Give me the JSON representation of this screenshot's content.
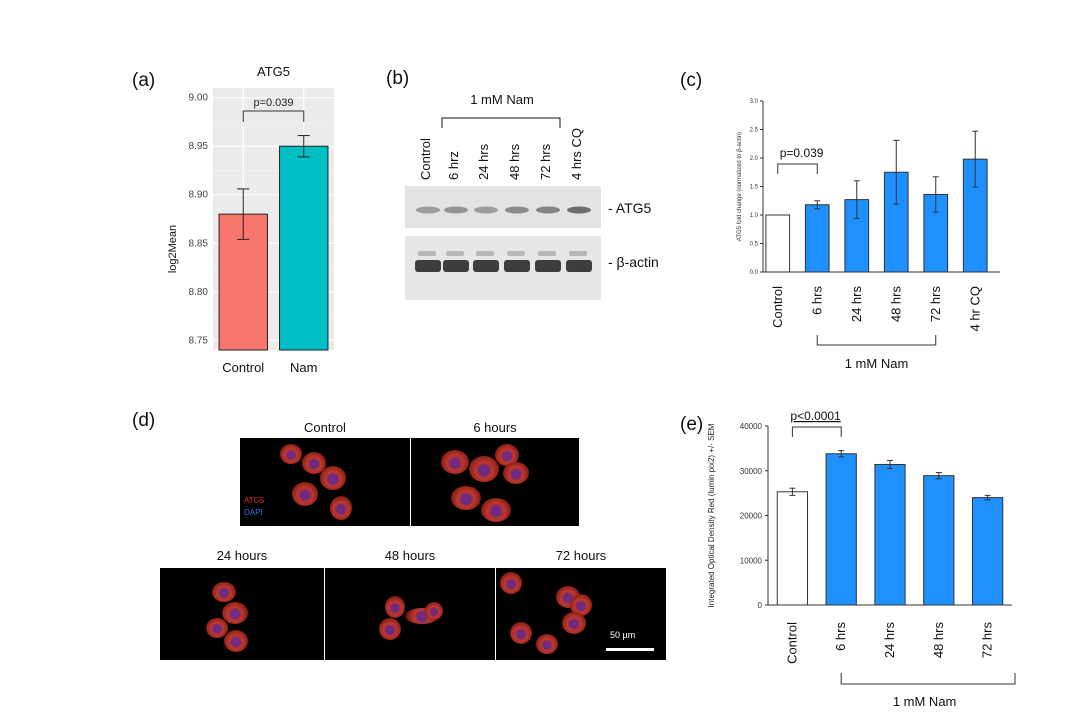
{
  "panels": {
    "a": "(a)",
    "b": "(b)",
    "c": "(c)",
    "d": "(d)",
    "e": "(e)"
  },
  "chart_data": [
    {
      "id": "a",
      "type": "bar",
      "title": "ATG5",
      "ylabel": "log2Mean",
      "categories": [
        "Control",
        "Nam"
      ],
      "values": [
        8.88,
        8.95
      ],
      "errors": [
        0.026,
        0.011
      ],
      "colors": [
        "#f8766d",
        "#00bfc4"
      ],
      "ylim": [
        8.74,
        9.01
      ],
      "yticks": [
        "8.75",
        "8.80",
        "8.85",
        "8.90",
        "8.95",
        "9.00"
      ],
      "ytick_values": [
        8.75,
        8.8,
        8.85,
        8.9,
        8.95,
        9.0
      ],
      "grid": true,
      "annotation": "p=0.039"
    },
    {
      "id": "c",
      "type": "bar",
      "ylabel": "ATG5 fold change (normalized to β-actin)",
      "categories": [
        "Control",
        "6 hrs",
        "24 hrs",
        "48 hrs",
        "72 hrs",
        "4 hr CQ"
      ],
      "values": [
        1.0,
        1.18,
        1.27,
        1.75,
        1.36,
        1.98
      ],
      "errors": [
        0.0,
        0.07,
        0.33,
        0.56,
        0.31,
        0.49
      ],
      "colors": [
        "#ffffff",
        "#1e90ff",
        "#1e90ff",
        "#1e90ff",
        "#1e90ff",
        "#1e90ff"
      ],
      "ylim": [
        0,
        3.0
      ],
      "yticks": [
        "0.0",
        "0.5",
        "1.0",
        "1.5",
        "2.0",
        "2.5",
        "3.0"
      ],
      "ytick_values": [
        0,
        0.5,
        1.0,
        1.5,
        2.0,
        2.5,
        3.0
      ],
      "annotation": "p=0.039",
      "group_label": "1 mM Nam"
    },
    {
      "id": "e",
      "type": "bar",
      "ylabel": "Integrated Optical Density Red (lumin pix2) +/- SEM",
      "categories": [
        "Control",
        "6 hrs",
        "24 hrs",
        "48 hrs",
        "72 hrs"
      ],
      "values": [
        25300,
        33800,
        31400,
        28900,
        24000
      ],
      "errors": [
        800,
        700,
        900,
        700,
        500
      ],
      "colors": [
        "#ffffff",
        "#1e90ff",
        "#1e90ff",
        "#1e90ff",
        "#1e90ff"
      ],
      "ylim": [
        0,
        40000
      ],
      "yticks": [
        "0",
        "10000",
        "20000",
        "30000",
        "40000"
      ],
      "ytick_values": [
        0,
        10000,
        20000,
        30000,
        40000
      ],
      "annotation": "p<0.0001",
      "group_label": "1 mM Nam"
    }
  ],
  "blot": {
    "group_label": "1 mM Nam",
    "lanes": [
      "Control",
      "6 hrz",
      "24 hrs",
      "48 hrs",
      "72 hrs",
      "4 hrs CQ"
    ],
    "band1": "- ATG5",
    "band2": "- β-actin"
  },
  "micro": {
    "titles": [
      "Control",
      "6 hours",
      "24 hours",
      "48 hours",
      "72 hours"
    ],
    "legend_red": "ATG5",
    "legend_blue": "DAPI",
    "scale": "50 µm",
    "legend_red_color": "#e0301e",
    "legend_blue_color": "#3b6fe0"
  }
}
